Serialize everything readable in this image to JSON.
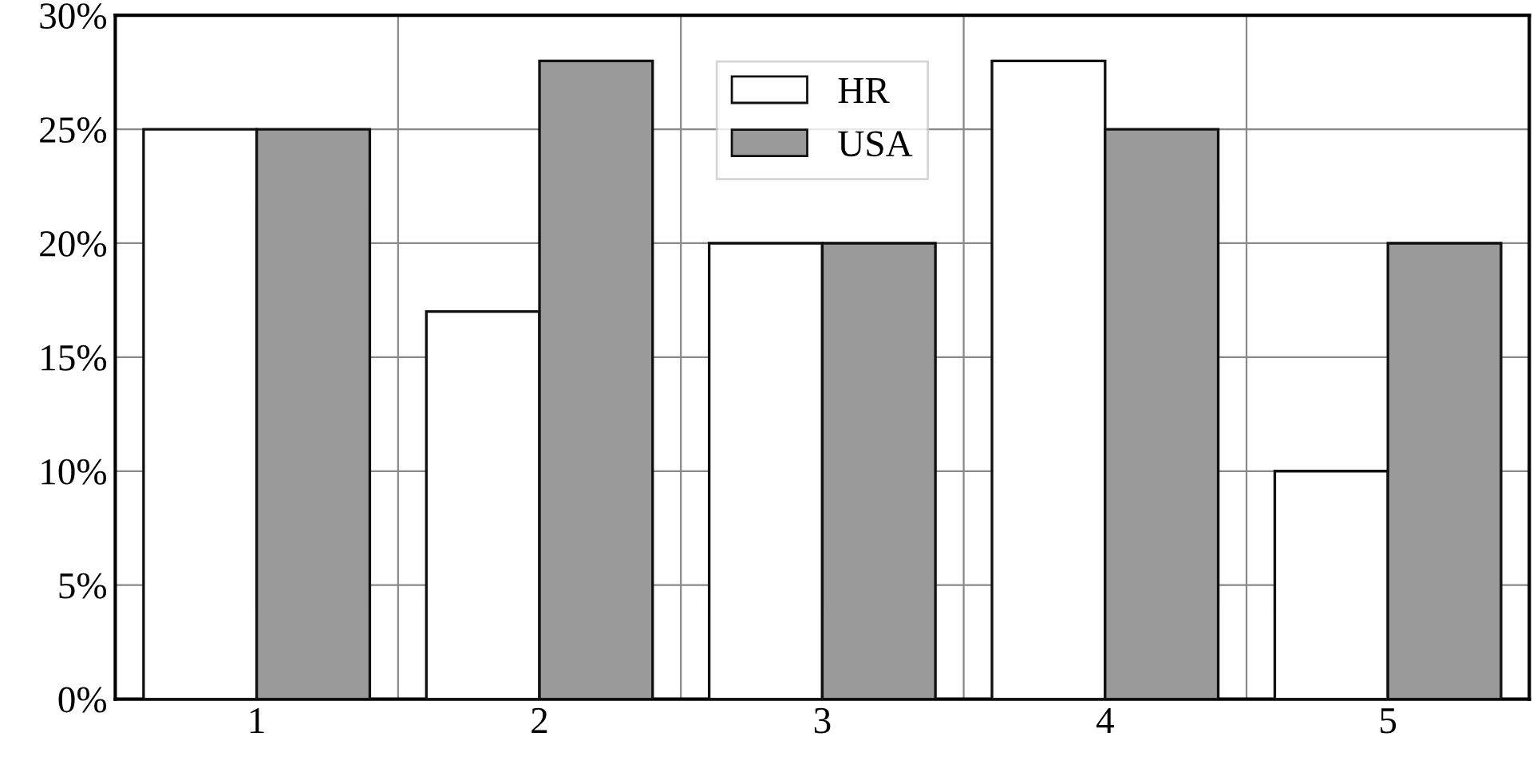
{
  "chart_data": {
    "type": "bar",
    "categories": [
      "1",
      "2",
      "3",
      "4",
      "5"
    ],
    "series": [
      {
        "name": "HR",
        "color": "#ffffff",
        "values": [
          25,
          17,
          20,
          28,
          10
        ]
      },
      {
        "name": "USA",
        "color": "#9a9a9a",
        "values": [
          25,
          28,
          20,
          25,
          20
        ]
      }
    ],
    "ylim": [
      0,
      30
    ],
    "yticks": [
      {
        "value": 0,
        "label": "0%"
      },
      {
        "value": 5,
        "label": "5%"
      },
      {
        "value": 10,
        "label": "10%"
      },
      {
        "value": 15,
        "label": "15%"
      },
      {
        "value": 20,
        "label": "20%"
      },
      {
        "value": 25,
        "label": "25%"
      },
      {
        "value": 30,
        "label": "30%"
      }
    ],
    "grid": true,
    "legend": "top center"
  }
}
